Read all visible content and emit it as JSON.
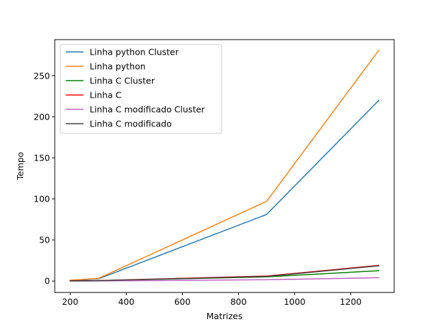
{
  "chart_data": {
    "type": "line",
    "title": "",
    "xlabel": "Matrizes",
    "ylabel": "Tempo",
    "xlim": [
      145,
      1355
    ],
    "ylim": [
      -14,
      294
    ],
    "xticks": [
      200,
      400,
      600,
      800,
      1000,
      1200
    ],
    "yticks": [
      0,
      50,
      100,
      150,
      200,
      250
    ],
    "x": [
      200,
      300,
      900,
      1300
    ],
    "grid": false,
    "legend_position": "top-left",
    "series": [
      {
        "name": "Linha python Cluster",
        "color": "#1f77b4",
        "values": [
          0.5,
          2.5,
          81,
          220
        ]
      },
      {
        "name": "Linha python",
        "color": "#ff7f0e",
        "values": [
          1,
          3,
          97,
          281
        ]
      },
      {
        "name": "Linha C Cluster",
        "color": "#008000",
        "values": [
          0,
          0.5,
          5,
          12.5
        ]
      },
      {
        "name": "Linha C",
        "color": "#ff0000",
        "values": [
          0,
          0.5,
          6,
          19
        ]
      },
      {
        "name": "Linha C modificado Cluster",
        "color": "#bf5fbf",
        "values": [
          0,
          0,
          1.5,
          4
        ]
      },
      {
        "name": "Linha C modificado",
        "color": "#3f3f3f",
        "values": [
          0,
          0.4,
          5.5,
          18.5
        ]
      }
    ]
  }
}
